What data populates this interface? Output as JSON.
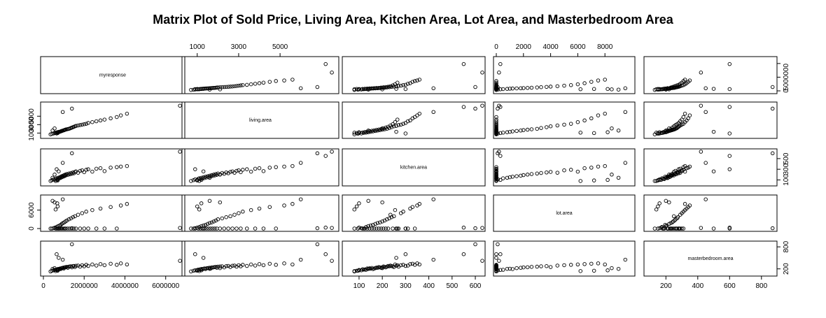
{
  "chart_data": {
    "type": "scatter",
    "subtype": "pairs-matrix",
    "title": "Matrix Plot of Sold Price, Living Area, Kitchen Area, Lot Area, and Masterbedroom Area",
    "grid": false,
    "variables": [
      "myresponse",
      "living.area",
      "kitchen.area",
      "lot.area",
      "masterbedroom.area"
    ],
    "axes": [
      {
        "var": "myresponse",
        "range": [
          0,
          6800000
        ],
        "ticks": [
          0,
          2000000,
          4000000,
          6000000
        ],
        "tick_labels": [
          "0",
          "2000000",
          "4000000",
          "6000000"
        ],
        "side": "bottom"
      },
      {
        "var": "living.area",
        "range": [
          400,
          7700
        ],
        "ticks": [
          1000,
          3000,
          5000
        ],
        "tick_labels": [
          "1000",
          "3000",
          "5000"
        ],
        "side": "top"
      },
      {
        "var": "kitchen.area",
        "range": [
          40,
          630
        ],
        "ticks": [
          100,
          200,
          300,
          400,
          500,
          600
        ],
        "tick_labels": [
          "100",
          "200",
          "300",
          "400",
          "500",
          "600"
        ],
        "side": "bottom"
      },
      {
        "var": "lot.area",
        "range": [
          0,
          10000
        ],
        "ticks": [
          0,
          2000,
          4000,
          6000,
          8000
        ],
        "tick_labels": [
          "0",
          "2000",
          "4000",
          "6000",
          "8000"
        ],
        "side": "top"
      },
      {
        "var": "masterbedroom.area",
        "range": [
          80,
          880
        ],
        "ticks": [
          200,
          400,
          600,
          800
        ],
        "tick_labels": [
          "200",
          "400",
          "600",
          "800"
        ],
        "side": "bottom"
      }
    ],
    "row_axes": [
      {
        "var": "myresponse",
        "range": [
          0,
          11500000
        ],
        "ticks": [
          0,
          5000000,
          10000000
        ],
        "tick_labels": [
          "0",
          "5000000",
          ""
        ],
        "side": "right"
      },
      {
        "var": "living.area",
        "range": [
          400,
          7700
        ],
        "ticks": [
          1000,
          3000,
          5000
        ],
        "tick_labels": [
          "1000",
          "3000",
          "5000"
        ],
        "side": "left"
      },
      {
        "var": "kitchen.area",
        "range": [
          40,
          630
        ],
        "ticks": [
          100,
          300,
          500
        ],
        "tick_labels": [
          "100",
          "300",
          "500"
        ],
        "side": "right"
      },
      {
        "var": "lot.area",
        "range": [
          0,
          10000
        ],
        "ticks": [
          0,
          6000
        ],
        "tick_labels": [
          "0",
          "6000"
        ],
        "side": "left"
      },
      {
        "var": "masterbedroom.area",
        "range": [
          80,
          880
        ],
        "ticks": [
          200,
          800
        ],
        "tick_labels": [
          "200",
          "800"
        ],
        "side": "right"
      }
    ],
    "sample_points": {
      "columns": [
        "myresponse",
        "living.area",
        "kitchen.area",
        "lot.area",
        "masterbedroom.area"
      ],
      "rows": [
        [
          350000,
          700,
          80,
          0,
          130
        ],
        [
          420000,
          820,
          95,
          0,
          150
        ],
        [
          500000,
          900,
          110,
          120,
          160
        ],
        [
          560000,
          1000,
          100,
          300,
          170
        ],
        [
          600000,
          1050,
          120,
          0,
          180
        ],
        [
          650000,
          1100,
          130,
          500,
          175
        ],
        [
          700000,
          1150,
          115,
          0,
          190
        ],
        [
          720000,
          1200,
          140,
          800,
          200
        ],
        [
          760000,
          1250,
          125,
          0,
          185
        ],
        [
          800000,
          1300,
          150,
          1000,
          205
        ],
        [
          820000,
          1350,
          135,
          0,
          210
        ],
        [
          850000,
          1400,
          160,
          1200,
          195
        ],
        [
          880000,
          1450,
          145,
          0,
          215
        ],
        [
          900000,
          1500,
          170,
          1500,
          220
        ],
        [
          930000,
          1550,
          155,
          0,
          225
        ],
        [
          960000,
          1600,
          180,
          1800,
          230
        ],
        [
          1000000,
          1650,
          165,
          0,
          210
        ],
        [
          1020000,
          1700,
          190,
          2000,
          240
        ],
        [
          1050000,
          1750,
          175,
          0,
          235
        ],
        [
          1080000,
          1800,
          200,
          2300,
          245
        ],
        [
          1100000,
          1850,
          185,
          0,
          250
        ],
        [
          1150000,
          1900,
          210,
          2600,
          255
        ],
        [
          1200000,
          1950,
          195,
          0,
          230
        ],
        [
          1250000,
          2000,
          220,
          3000,
          260
        ],
        [
          1300000,
          2100,
          205,
          0,
          265
        ],
        [
          1350000,
          2200,
          230,
          3300,
          270
        ],
        [
          1400000,
          2300,
          215,
          0,
          240
        ],
        [
          1450000,
          2400,
          240,
          3700,
          275
        ],
        [
          1500000,
          2500,
          225,
          0,
          280
        ],
        [
          1550000,
          2600,
          250,
          4000,
          250
        ],
        [
          1600000,
          2700,
          260,
          0,
          285
        ],
        [
          1700000,
          2800,
          235,
          4500,
          290
        ],
        [
          1800000,
          2900,
          270,
          0,
          260
        ],
        [
          1900000,
          3000,
          280,
          5000,
          300
        ],
        [
          2000000,
          3100,
          245,
          0,
          270
        ],
        [
          2100000,
          3200,
          290,
          5500,
          310
        ],
        [
          2200000,
          3400,
          300,
          0,
          280
        ],
        [
          2400000,
          3600,
          255,
          6000,
          320
        ],
        [
          2600000,
          3800,
          310,
          0,
          290
        ],
        [
          2800000,
          4000,
          320,
          6500,
          330
        ],
        [
          3000000,
          4200,
          265,
          0,
          300
        ],
        [
          3300000,
          4500,
          330,
          7000,
          340
        ],
        [
          3600000,
          4800,
          340,
          0,
          310
        ],
        [
          3800000,
          5200,
          350,
          7500,
          350
        ],
        [
          4100000,
          5600,
          360,
          8000,
          320
        ],
        [
          450000,
          1600,
          140,
          9000,
          200
        ],
        [
          550000,
          2100,
          200,
          8500,
          220
        ],
        [
          650000,
          900,
          300,
          0,
          600
        ],
        [
          750000,
          1300,
          260,
          0,
          500
        ],
        [
          950000,
          6000,
          420,
          9500,
          450
        ],
        [
          1400000,
          6800,
          600,
          100,
          870
        ],
        [
          6700000,
          7500,
          630,
          200,
          420
        ],
        [
          9800000,
          7200,
          550,
          300,
          600
        ],
        [
          600000,
          1100,
          80,
          6200,
          140
        ],
        [
          700000,
          1000,
          90,
          7200,
          150
        ],
        [
          680000,
          1200,
          100,
          8200,
          160
        ]
      ]
    }
  }
}
